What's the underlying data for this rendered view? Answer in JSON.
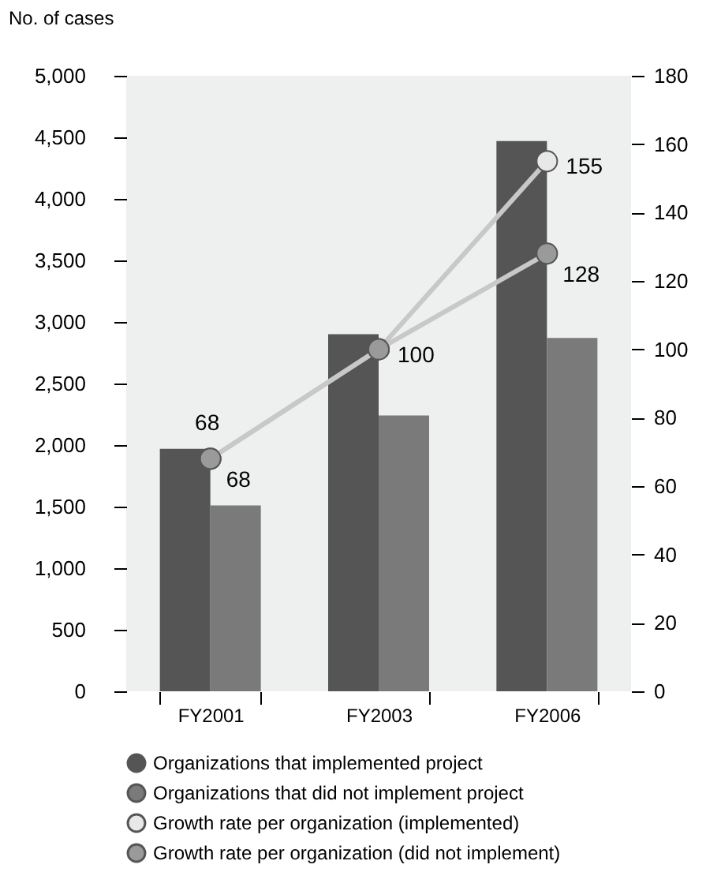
{
  "chart_data": {
    "type": "bar",
    "ylabel": "No. of cases",
    "categories": [
      "FY2001",
      "FY2003",
      "FY2006"
    ],
    "series": [
      {
        "name": "Organizations that implemented project",
        "type": "bar",
        "color": "#555555",
        "values": [
          1970,
          2900,
          4470
        ]
      },
      {
        "name": "Organizations that did not implement project",
        "type": "bar",
        "color": "#7a7a7a",
        "values": [
          1510,
          2240,
          2870
        ]
      },
      {
        "name": "Growth rate per organization (implemented)",
        "type": "line",
        "axis": "y2",
        "color": "#e8e8e8",
        "marker": "circle",
        "values": [
          68,
          100,
          155
        ],
        "value_labels": [
          "68",
          "100",
          "155"
        ]
      },
      {
        "name": "Growth rate per organization (did not implement)",
        "type": "line",
        "axis": "y2",
        "color": "#9a9a9a",
        "marker": "circle",
        "values": [
          68,
          100,
          128
        ],
        "value_labels": [
          "68",
          null,
          "128"
        ]
      }
    ],
    "ylim": [
      0,
      5000
    ],
    "yticks": [
      0,
      500,
      {
        "value": 1000,
        "label": "1,000"
      },
      {
        "value": 1500,
        "label": "1,500"
      },
      {
        "value": 2000,
        "label": "2,000"
      },
      {
        "value": 2500,
        "label": "2,500"
      },
      {
        "value": 3000,
        "label": "3,000"
      },
      {
        "value": 3500,
        "label": "3,500"
      },
      {
        "value": 4000,
        "label": "4,000"
      },
      {
        "value": 4500,
        "label": "4,500"
      },
      {
        "value": 5000,
        "label": "5,000"
      }
    ],
    "y2lim": [
      0,
      180
    ],
    "y2ticks": [
      0,
      20,
      40,
      60,
      80,
      100,
      120,
      140,
      160,
      180
    ],
    "legend": "bottom",
    "line_style": "solid"
  }
}
